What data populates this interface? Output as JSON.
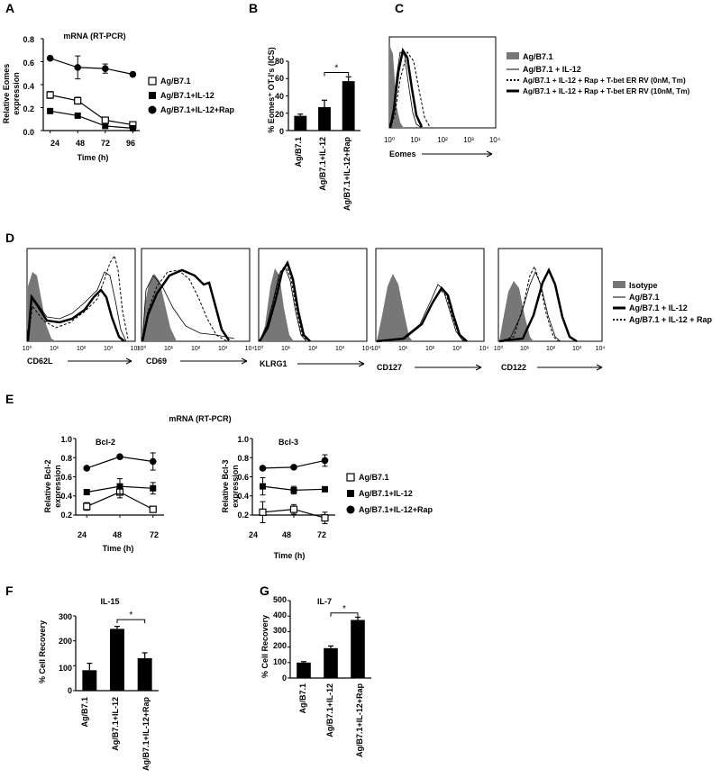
{
  "panel_letters": [
    "A",
    "B",
    "C",
    "D",
    "E",
    "F",
    "G"
  ],
  "charts": {
    "A": {
      "title": "mRNA (RT-PCR)",
      "ylabel": [
        "Relative Eomes",
        "expression"
      ],
      "xlabel": "Time (h)",
      "yticks": [
        "0.0",
        "0.2",
        "0.4",
        "0.6",
        "0.8"
      ],
      "xticks": [
        "24",
        "48",
        "72",
        "96"
      ],
      "legend": [
        "Ag/B7.1",
        "Ag/B7.1+IL-12",
        "Ag/B7.1+IL-12+Rap"
      ]
    },
    "B": {
      "ylabel": "% Eomes⁺ OT-I's (ICS)",
      "yticks": [
        "0",
        "20",
        "40",
        "60",
        "80"
      ],
      "categories": [
        "Ag/B7.1",
        "Ag/B7.1+IL-12",
        "Ag/B7.1+IL-12+Rap"
      ],
      "sig": "*"
    },
    "C": {
      "xlabel": "Eomes",
      "legend": [
        "Ag/B7.1",
        "Ag/B7.1 + IL-12",
        "Ag/B7.1 + IL-12 + Rap + T-bet ER RV (0nM, Tm)",
        "Ag/B7.1 + IL-12 + Rap + T-bet ER RV (10nM, Tm)"
      ]
    },
    "D": {
      "markers": [
        "CD62L",
        "CD69",
        "KLRG1",
        "CD127",
        "CD122"
      ],
      "legend": [
        "Isotype",
        "Ag/B7.1",
        "Ag/B7.1 + IL-12",
        "Ag/B7.1 + IL-12 + Rap"
      ]
    },
    "E": {
      "title": "mRNA (RT-PCR)",
      "left_title": "Bcl-2",
      "right_title": "Bcl-3",
      "left_ylabel": [
        "Relative Bcl-2",
        "expression"
      ],
      "right_ylabel": [
        "Relative Bcl-3",
        "expression"
      ],
      "xlabel": "Time (h)",
      "yticks": [
        "0.2",
        "0.4",
        "0.6",
        "0.8",
        "1.0"
      ],
      "xticks": [
        "24",
        "48",
        "72"
      ],
      "legend": [
        "Ag/B7.1",
        "Ag/B7.1+IL-12",
        "Ag/B7.1+IL-12+Rap"
      ]
    },
    "F": {
      "title": "IL-15",
      "ylabel": "% Cell Recovery",
      "yticks": [
        "0",
        "100",
        "200",
        "300"
      ],
      "categories": [
        "Ag/B7.1",
        "Ag/B7.1+IL-12",
        "Ag/B7.1+IL-12+Rap"
      ],
      "sig": "*"
    },
    "G": {
      "title": "IL-7",
      "ylabel": "% Cell Recovery",
      "yticks": [
        "0",
        "100",
        "200",
        "300",
        "400",
        "500"
      ],
      "categories": [
        "Ag/B7.1",
        "Ag/B7.1+IL-12",
        "Ag/B7.1+IL-12+Rap"
      ],
      "sig": "*"
    }
  },
  "flow_xticks": [
    "10⁰",
    "10¹",
    "10²",
    "10³",
    "10⁴"
  ],
  "chart_data": [
    {
      "panel": "A",
      "type": "line",
      "x": [
        24,
        48,
        72,
        96
      ],
      "xlim": [
        18,
        102
      ],
      "ylim": [
        0,
        0.8
      ],
      "series": [
        {
          "name": "Ag/B7.1",
          "marker": "open-square",
          "values": [
            0.31,
            0.26,
            0.09,
            0.05
          ],
          "errors": [
            0.03,
            0.03,
            0.02,
            0.01
          ]
        },
        {
          "name": "Ag/B7.1+IL-12",
          "marker": "filled-square",
          "values": [
            0.17,
            0.13,
            0.04,
            0.02
          ],
          "errors": [
            0.01,
            0.01,
            0.01,
            0.01
          ]
        },
        {
          "name": "Ag/B7.1+IL-12+Rap",
          "marker": "filled-circle",
          "values": [
            0.63,
            0.55,
            0.54,
            0.49
          ],
          "errors": [
            0.01,
            0.1,
            0.04,
            0.01
          ]
        }
      ]
    },
    {
      "panel": "B",
      "type": "bar",
      "categories": [
        "Ag/B7.1",
        "Ag/B7.1+IL-12",
        "Ag/B7.1+IL-12+Rap"
      ],
      "values": [
        17,
        27,
        57
      ],
      "errors": [
        2,
        8,
        5
      ],
      "ylim": [
        0,
        80
      ],
      "significance": [
        {
          "from": 1,
          "to": 2,
          "label": "*",
          "y": 67
        }
      ]
    },
    {
      "panel": "E-Bcl-2",
      "type": "line",
      "x": [
        24,
        48,
        72
      ],
      "xlim": [
        16,
        80
      ],
      "ylim": [
        0.2,
        1.0
      ],
      "series": [
        {
          "name": "Ag/B7.1",
          "marker": "open-square",
          "values": [
            0.29,
            0.44,
            0.26
          ],
          "errors": [
            0.04,
            0.06,
            0.01
          ]
        },
        {
          "name": "Ag/B7.1+IL-12",
          "marker": "filled-square",
          "values": [
            0.44,
            0.5,
            0.48
          ],
          "errors": [
            0.01,
            0.08,
            0.06
          ]
        },
        {
          "name": "Ag/B7.1+IL-12+Rap",
          "marker": "filled-circle",
          "values": [
            0.69,
            0.81,
            0.76
          ],
          "errors": [
            0.01,
            0.01,
            0.09
          ]
        }
      ]
    },
    {
      "panel": "E-Bcl-3",
      "type": "line",
      "x": [
        24,
        48,
        72
      ],
      "xlim": [
        16,
        80
      ],
      "ylim": [
        0.2,
        1.0
      ],
      "series": [
        {
          "name": "Ag/B7.1",
          "marker": "open-square",
          "values": [
            0.23,
            0.26,
            0.17
          ],
          "errors": [
            0.11,
            0.05,
            0.06
          ]
        },
        {
          "name": "Ag/B7.1+IL-12",
          "marker": "filled-square",
          "values": [
            0.5,
            0.46,
            0.47
          ],
          "errors": [
            0.09,
            0.04,
            0.01
          ]
        },
        {
          "name": "Ag/B7.1+IL-12+Rap",
          "marker": "filled-circle",
          "values": [
            0.69,
            0.7,
            0.77
          ],
          "errors": [
            0.01,
            0.01,
            0.06
          ]
        }
      ]
    },
    {
      "panel": "F",
      "type": "bar",
      "categories": [
        "Ag/B7.1",
        "Ag/B7.1+IL-12",
        "Ag/B7.1+IL-12+Rap"
      ],
      "values": [
        82,
        248,
        130
      ],
      "errors": [
        28,
        10,
        22
      ],
      "ylim": [
        0,
        300
      ],
      "significance": [
        {
          "from": 1,
          "to": 2,
          "label": "*",
          "y": 285
        }
      ]
    },
    {
      "panel": "G",
      "type": "bar",
      "categories": [
        "Ag/B7.1",
        "Ag/B7.1+IL-12",
        "Ag/B7.1+IL-12+Rap"
      ],
      "values": [
        100,
        193,
        375
      ],
      "errors": [
        6,
        14,
        18
      ],
      "ylim": [
        0,
        500
      ],
      "significance": [
        {
          "from": 1,
          "to": 2,
          "label": "*",
          "y": 420
        }
      ]
    }
  ]
}
